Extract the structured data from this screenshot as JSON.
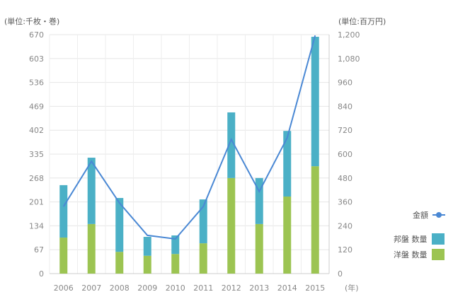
{
  "chart_data": {
    "type": "bar",
    "stacked": true,
    "categories": [
      "2006",
      "2007",
      "2008",
      "2009",
      "2010",
      "2011",
      "2012",
      "2013",
      "2014",
      "2015"
    ],
    "xlabel": "(年)",
    "left_axis": {
      "label": "(単位:千枚・巻)",
      "ylim": [
        0,
        670
      ],
      "ticks": [
        0,
        67,
        134,
        201,
        268,
        335,
        402,
        469,
        536,
        603,
        670
      ]
    },
    "right_axis": {
      "label": "(単位:百万円)",
      "ylim": [
        0,
        1200
      ],
      "ticks": [
        "0",
        "120",
        "240",
        "360",
        "480",
        "600",
        "720",
        "840",
        "960",
        "1,080",
        "1,200"
      ]
    },
    "series": [
      {
        "name": "洋盤 数量",
        "type": "bar",
        "axis": "left",
        "color": "#9cc452",
        "values": [
          101,
          139,
          61,
          50,
          55,
          85,
          268,
          139,
          216,
          301
        ]
      },
      {
        "name": "邦盤 数量",
        "type": "bar",
        "axis": "left",
        "color": "#4bb0c6",
        "values": [
          147,
          186,
          151,
          53,
          52,
          123,
          184,
          129,
          184,
          363
        ]
      },
      {
        "name": "金額",
        "type": "line",
        "axis": "right",
        "color": "#4a88d4",
        "values": [
          337,
          564,
          355,
          192,
          174,
          337,
          674,
          412,
          682,
          1196
        ]
      }
    ],
    "legend": "right",
    "grid": true
  }
}
